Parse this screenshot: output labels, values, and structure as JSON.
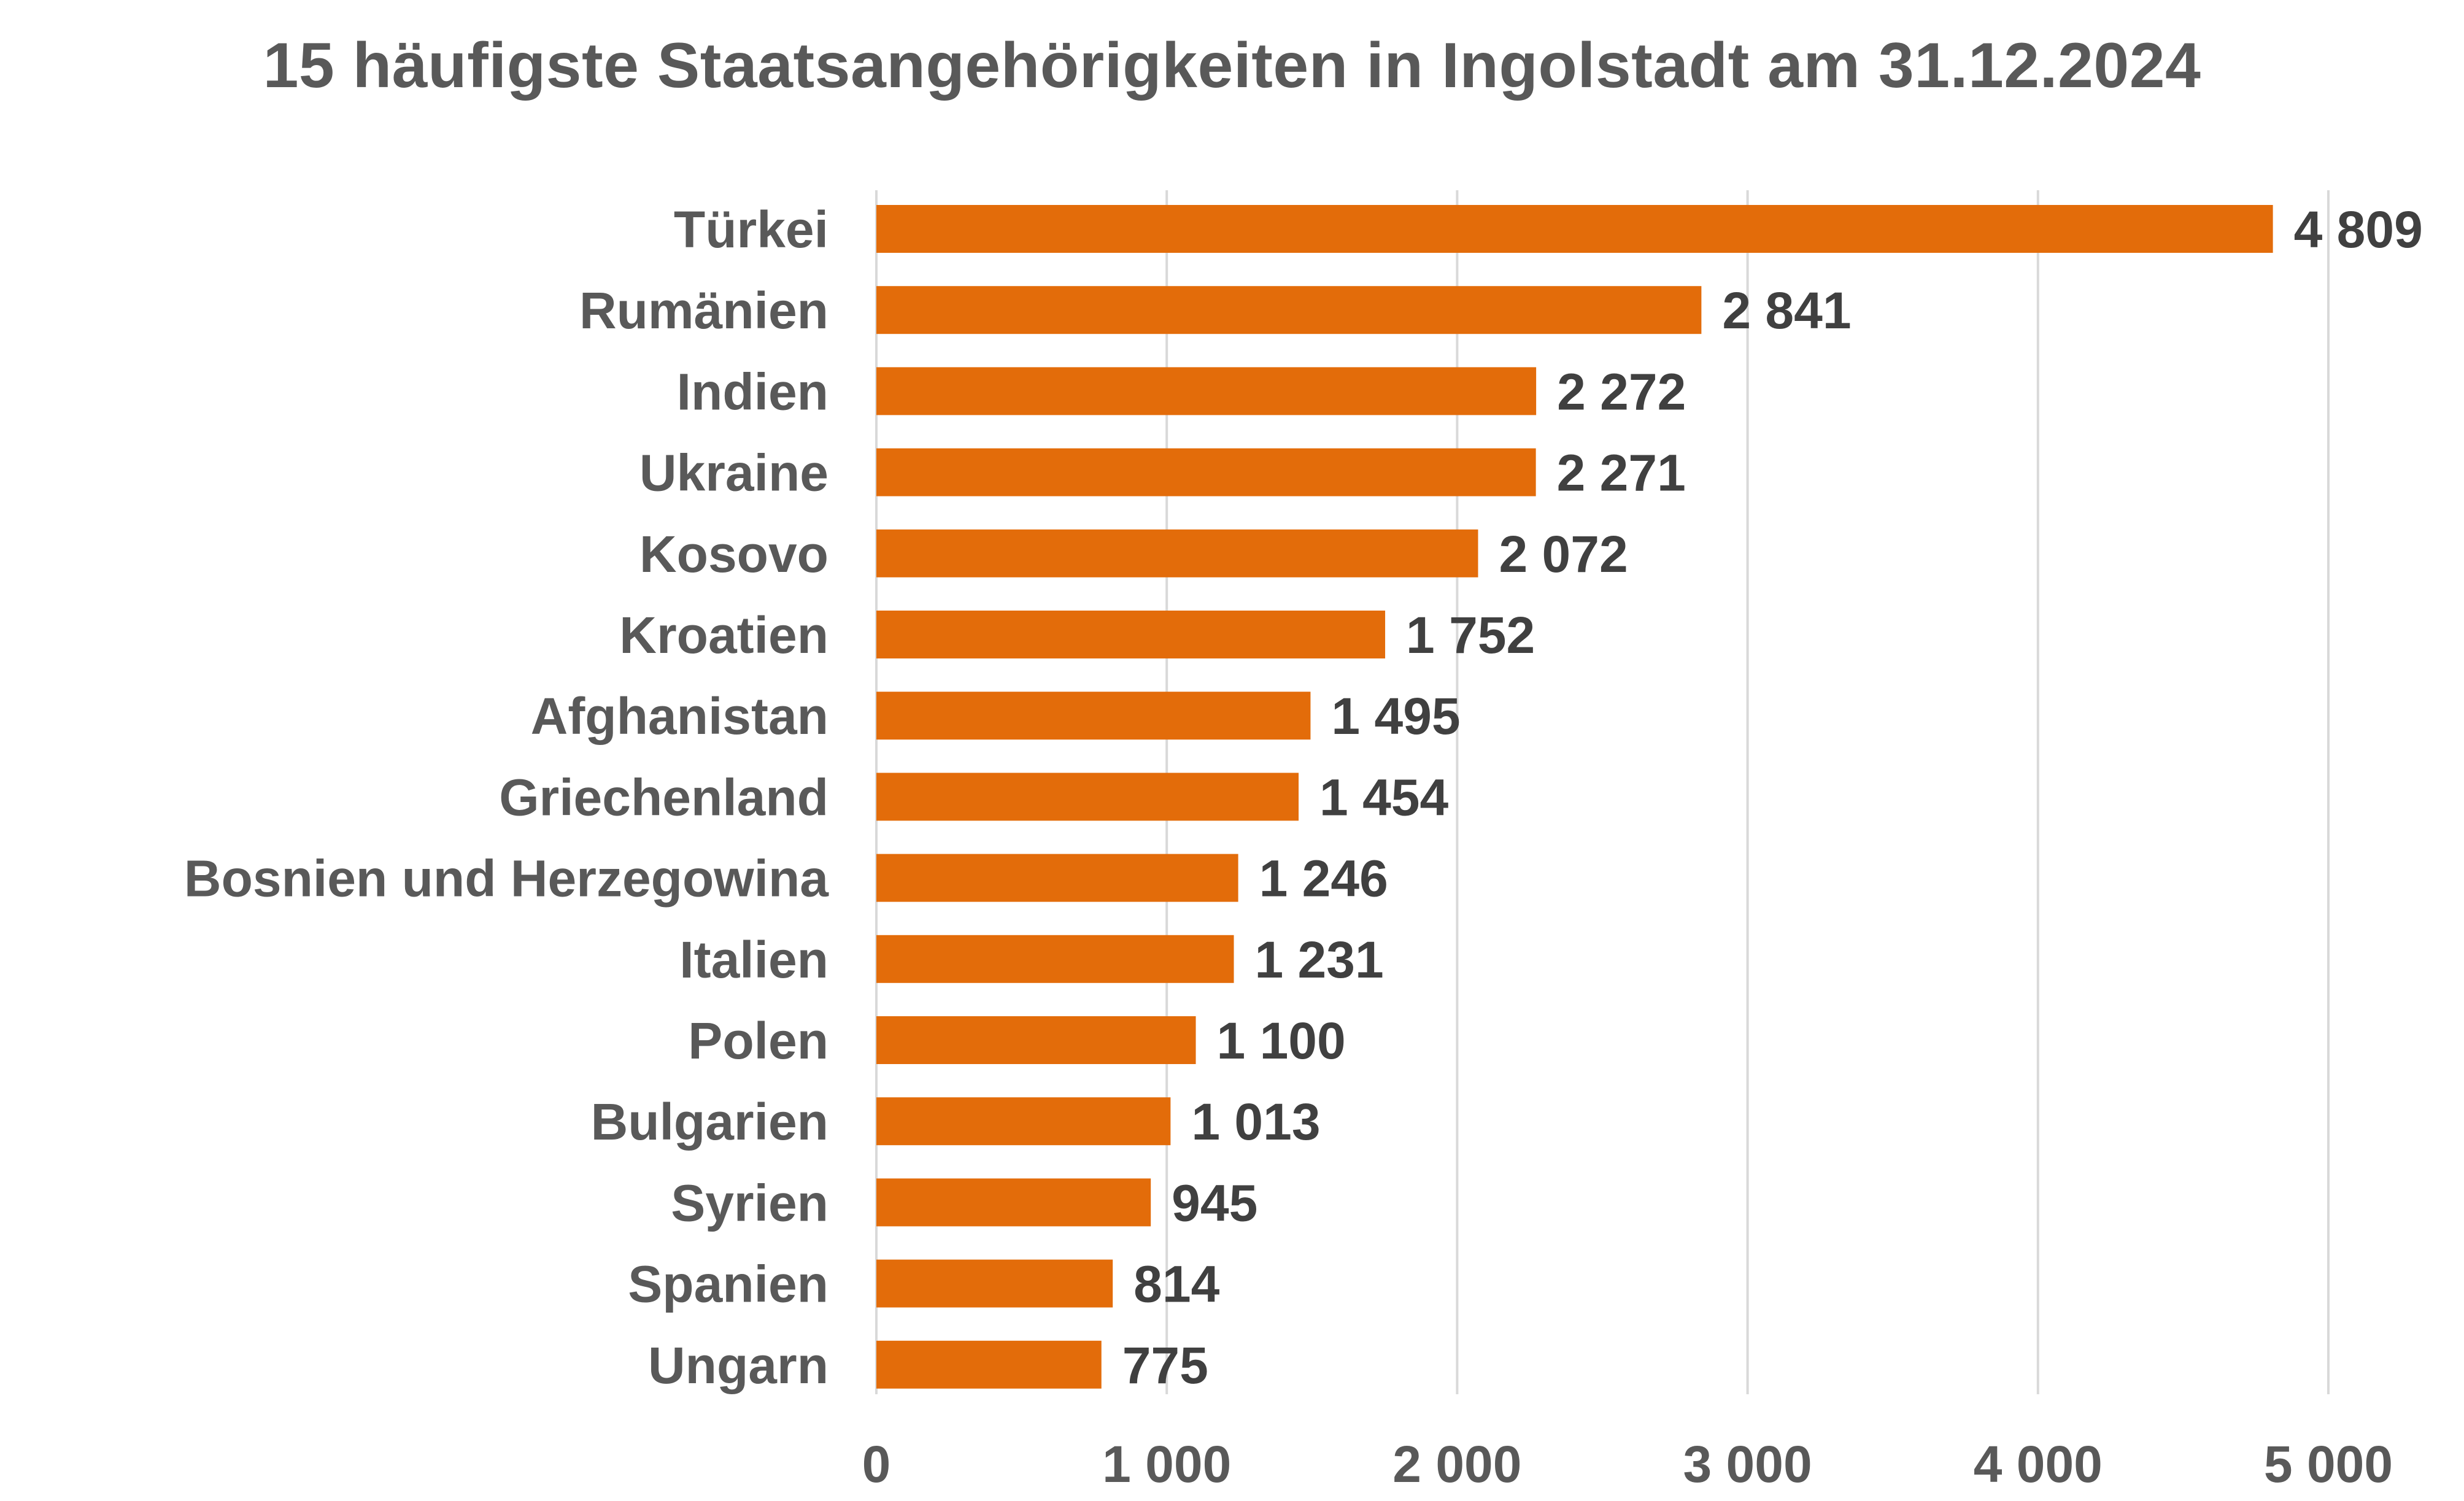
{
  "chart_data": {
    "type": "bar",
    "orientation": "horizontal",
    "title": "15 häufigste Staatsangehörigkeiten in Ingolstadt am 31.12.2024",
    "xlabel": "",
    "ylabel": "",
    "categories": [
      "Türkei",
      "Rumänien",
      "Indien",
      "Ukraine",
      "Kosovo",
      "Kroatien",
      "Afghanistan",
      "Griechenland",
      "Bosnien und Herzegowina",
      "Italien",
      "Polen",
      "Bulgarien",
      "Syrien",
      "Spanien",
      "Ungarn"
    ],
    "values": [
      4809,
      2841,
      2272,
      2271,
      2072,
      1752,
      1495,
      1454,
      1246,
      1231,
      1100,
      1013,
      945,
      814,
      775
    ],
    "value_labels": [
      "4 809",
      "2 841",
      "2 272",
      "2 271",
      "2 072",
      "1 752",
      "1 495",
      "1 454",
      "1 246",
      "1 231",
      "1 100",
      "1 013",
      "945",
      "814",
      "775"
    ],
    "xlim": [
      0,
      5000
    ],
    "xticks": [
      0,
      1000,
      2000,
      3000,
      4000,
      5000
    ],
    "xtick_labels": [
      "0",
      "1 000",
      "2 000",
      "3 000",
      "4 000",
      "5 000"
    ],
    "grid": "vertical",
    "legend": "none",
    "colors": {
      "bar": "#E36C0A",
      "grid": "#D9D9D9",
      "title": "#595959",
      "category_text": "#595959",
      "value_text": "#404040"
    }
  }
}
